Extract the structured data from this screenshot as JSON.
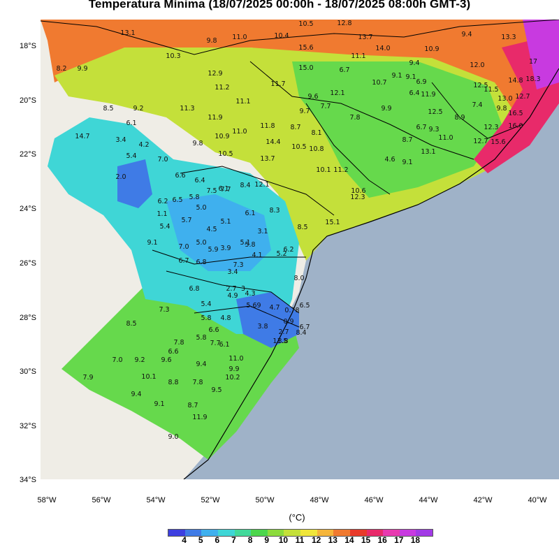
{
  "title": "Temperatura Mínima (18/07/2025 00:00h - 18/07/2025 08:00h GMT-3)",
  "lat_ticks": [
    "18°S",
    "20°S",
    "22°S",
    "24°S",
    "26°S",
    "28°S",
    "30°S",
    "32°S",
    "34°S"
  ],
  "lon_ticks": [
    "58°W",
    "56°W",
    "54°W",
    "52°W",
    "50°W",
    "48°W",
    "46°W",
    "44°W",
    "42°W",
    "40°W"
  ],
  "colorbar": {
    "unit": "(°C)",
    "labels": [
      "4",
      "5",
      "6",
      "7",
      "8",
      "9",
      "10",
      "11",
      "12",
      "13",
      "14",
      "15",
      "16",
      "17",
      "18"
    ],
    "colors": [
      "#3d3fe0",
      "#3f7be6",
      "#3fb0ee",
      "#3fd6d6",
      "#42d99a",
      "#4cd64c",
      "#8cdb3c",
      "#c4e03a",
      "#f0e63a",
      "#f5b53a",
      "#f07a30",
      "#e83a2a",
      "#e82a6a",
      "#e83ab0",
      "#c83ae0",
      "#a23ae6"
    ]
  },
  "region_colors": {
    "sea": "#9fb2c8",
    "land_outside": "#efede6",
    "warm_band": "#f07a30",
    "north_yellow": "#c4e03a",
    "green_core": "#66d94c",
    "cyan_west": "#3fd6d6",
    "blue_west": "#3f7be6",
    "blue_core": "#3fb0ee",
    "coast_hot": "#e82a6a",
    "coast_magenta": "#c83ae0"
  },
  "station_values": [
    {
      "t": "13.1"
    },
    {
      "t": "11.0"
    },
    {
      "t": "9.8"
    },
    {
      "t": "10.4"
    },
    {
      "t": "10.5"
    },
    {
      "t": "12.8"
    },
    {
      "t": "9.4"
    },
    {
      "t": "13.3"
    },
    {
      "t": "10.3"
    },
    {
      "t": "15.6"
    },
    {
      "t": "13.7"
    },
    {
      "t": "14.0"
    },
    {
      "t": "10.9"
    },
    {
      "t": "8.2"
    },
    {
      "t": "9.9"
    },
    {
      "t": "15.0"
    },
    {
      "t": "11.1"
    },
    {
      "t": "6.7"
    },
    {
      "t": "9.4"
    },
    {
      "t": "12.0"
    },
    {
      "t": "17"
    },
    {
      "t": "12.9"
    },
    {
      "t": "9.1"
    },
    {
      "t": "11.7"
    },
    {
      "t": "10.7"
    },
    {
      "t": "9.1"
    },
    {
      "t": "6.9"
    },
    {
      "t": "12.5"
    },
    {
      "t": "11.5"
    },
    {
      "t": "14.8"
    },
    {
      "t": "18.3"
    },
    {
      "t": "11.2"
    },
    {
      "t": "9.6"
    },
    {
      "t": "12.1"
    },
    {
      "t": "6.4"
    },
    {
      "t": "11.9"
    },
    {
      "t": "13.0"
    },
    {
      "t": "12.7"
    },
    {
      "t": "8.5"
    },
    {
      "t": "9.2"
    },
    {
      "t": "11.3"
    },
    {
      "t": "11.1"
    },
    {
      "t": "9.7"
    },
    {
      "t": "7.7"
    },
    {
      "t": "9.9"
    },
    {
      "t": "12.5"
    },
    {
      "t": "7.4"
    },
    {
      "t": "9.8"
    },
    {
      "t": "6.1"
    },
    {
      "t": "11.9"
    },
    {
      "t": "11.8"
    },
    {
      "t": "8.7"
    },
    {
      "t": "7.8"
    },
    {
      "t": "8.9"
    },
    {
      "t": "16.5"
    },
    {
      "t": "14.7"
    },
    {
      "t": "3.4"
    },
    {
      "t": "4.2"
    },
    {
      "t": "10.9"
    },
    {
      "t": "11.0"
    },
    {
      "t": "8.1"
    },
    {
      "t": "6.7"
    },
    {
      "t": "9.3"
    },
    {
      "t": "12.3"
    },
    {
      "t": "16.0"
    },
    {
      "t": "5.4"
    },
    {
      "t": "7.0"
    },
    {
      "t": "9.8"
    },
    {
      "t": "14.4"
    },
    {
      "t": "10.5"
    },
    {
      "t": "8.7"
    },
    {
      "t": "11.0"
    },
    {
      "t": "12.7"
    },
    {
      "t": "15.6"
    },
    {
      "t": "10.5"
    },
    {
      "t": "13.7"
    },
    {
      "t": "10.8"
    },
    {
      "t": "4.6"
    },
    {
      "t": "13.1"
    },
    {
      "t": "2.0"
    },
    {
      "t": "10.1"
    },
    {
      "t": "11.2"
    },
    {
      "t": "9.1"
    },
    {
      "t": "6.6"
    },
    {
      "t": "6.4"
    },
    {
      "t": "7.7"
    },
    {
      "t": "8.4"
    },
    {
      "t": "12.1"
    },
    {
      "t": "10.6"
    },
    {
      "t": "6.2"
    },
    {
      "t": "6.5"
    },
    {
      "t": "5.8"
    },
    {
      "t": "7.5"
    },
    {
      "t": "6.1"
    },
    {
      "t": "12.3"
    },
    {
      "t": "5.0"
    },
    {
      "t": "8.3"
    },
    {
      "t": "1.1"
    },
    {
      "t": "5.7"
    },
    {
      "t": "6.1"
    },
    {
      "t": "5.4"
    },
    {
      "t": "5.1"
    },
    {
      "t": "4.5"
    },
    {
      "t": "3.1"
    },
    {
      "t": "8.5"
    },
    {
      "t": "15.1"
    },
    {
      "t": "9.1"
    },
    {
      "t": "5.0"
    },
    {
      "t": "5.1"
    },
    {
      "t": "5.8"
    },
    {
      "t": "7.0"
    },
    {
      "t": "5.9"
    },
    {
      "t": "3.9"
    },
    {
      "t": "4.1"
    },
    {
      "t": "5.2"
    },
    {
      "t": "6.2"
    },
    {
      "t": "6.7"
    },
    {
      "t": "6.8"
    },
    {
      "t": "7.3"
    },
    {
      "t": "3.4"
    },
    {
      "t": "8.0"
    },
    {
      "t": "6.8"
    },
    {
      "t": "2.7"
    },
    {
      "t": "3"
    },
    {
      "t": "4.9"
    },
    {
      "t": "4.3"
    },
    {
      "t": "5.4"
    },
    {
      "t": "5.69"
    },
    {
      "t": "4.7"
    },
    {
      "t": "0.78"
    },
    {
      "t": "6.5"
    },
    {
      "t": "7.3"
    },
    {
      "t": "5.8"
    },
    {
      "t": "4.8"
    },
    {
      "t": "0.9"
    },
    {
      "t": "8.5"
    },
    {
      "t": "6.6"
    },
    {
      "t": "3.8"
    },
    {
      "t": "6.7"
    },
    {
      "t": "7.8"
    },
    {
      "t": "7.7"
    },
    {
      "t": "5.8"
    },
    {
      "t": "2.7"
    },
    {
      "t": "8.4"
    },
    {
      "t": "6.6"
    },
    {
      "t": "6.1"
    },
    {
      "t": "3.8"
    },
    {
      "t": "11.5"
    },
    {
      "t": "7.0"
    },
    {
      "t": "9.2"
    },
    {
      "t": "9.6"
    },
    {
      "t": "11.0"
    },
    {
      "t": "9.4"
    },
    {
      "t": "9.9"
    },
    {
      "t": "10.1"
    },
    {
      "t": "8.8"
    },
    {
      "t": "7.8"
    },
    {
      "t": "10.2"
    },
    {
      "t": "7.9"
    },
    {
      "t": "9.5"
    },
    {
      "t": "9.4"
    },
    {
      "t": "9.1"
    },
    {
      "t": "8.7"
    },
    {
      "t": "11.9"
    },
    {
      "t": "9.0"
    }
  ]
}
